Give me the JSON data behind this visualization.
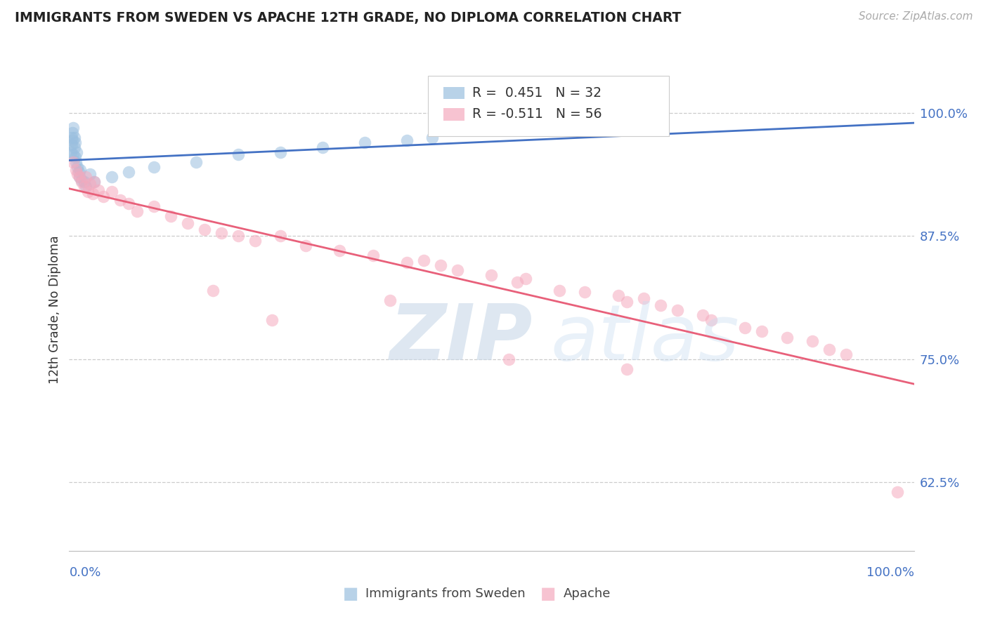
{
  "title": "IMMIGRANTS FROM SWEDEN VS APACHE 12TH GRADE, NO DIPLOMA CORRELATION CHART",
  "source": "Source: ZipAtlas.com",
  "ylabel": "12th Grade, No Diploma",
  "legend_blue_r": "R =  0.451",
  "legend_blue_n": "N = 32",
  "legend_pink_r": "R = -0.511",
  "legend_pink_n": "N = 56",
  "blue_color": "#9ABFDF",
  "pink_color": "#F5AABE",
  "blue_line_color": "#4472C4",
  "pink_line_color": "#E8607A",
  "background_color": "#FFFFFF",
  "xmin": 0.0,
  "xmax": 1.0,
  "ymin": 0.555,
  "ymax": 1.045,
  "yticks": [
    0.625,
    0.75,
    0.875,
    1.0
  ],
  "ytick_labels": [
    "62.5%",
    "75.0%",
    "87.5%",
    "100.0%"
  ],
  "blue_x": [
    0.002,
    0.003,
    0.003,
    0.004,
    0.004,
    0.005,
    0.005,
    0.006,
    0.006,
    0.007,
    0.007,
    0.008,
    0.009,
    0.01,
    0.011,
    0.012,
    0.013,
    0.015,
    0.018,
    0.02,
    0.025,
    0.03,
    0.05,
    0.07,
    0.1,
    0.15,
    0.2,
    0.25,
    0.3,
    0.35,
    0.4,
    0.43
  ],
  "blue_y": [
    0.96,
    0.968,
    0.975,
    0.972,
    0.98,
    0.985,
    0.958,
    0.965,
    0.975,
    0.955,
    0.97,
    0.95,
    0.96,
    0.945,
    0.94,
    0.935,
    0.942,
    0.932,
    0.93,
    0.925,
    0.938,
    0.93,
    0.935,
    0.94,
    0.945,
    0.95,
    0.958,
    0.96,
    0.965,
    0.97,
    0.972,
    0.975
  ],
  "pink_x": [
    0.005,
    0.008,
    0.01,
    0.012,
    0.015,
    0.018,
    0.02,
    0.022,
    0.025,
    0.028,
    0.03,
    0.035,
    0.04,
    0.05,
    0.06,
    0.07,
    0.08,
    0.1,
    0.12,
    0.14,
    0.16,
    0.18,
    0.2,
    0.22,
    0.25,
    0.28,
    0.32,
    0.36,
    0.4,
    0.42,
    0.44,
    0.46,
    0.5,
    0.53,
    0.54,
    0.58,
    0.61,
    0.65,
    0.66,
    0.68,
    0.7,
    0.72,
    0.75,
    0.76,
    0.8,
    0.82,
    0.85,
    0.88,
    0.9,
    0.92,
    0.17,
    0.24,
    0.38,
    0.52,
    0.66,
    0.98
  ],
  "pink_y": [
    0.95,
    0.942,
    0.938,
    0.935,
    0.93,
    0.925,
    0.935,
    0.92,
    0.928,
    0.918,
    0.93,
    0.922,
    0.915,
    0.92,
    0.912,
    0.908,
    0.9,
    0.905,
    0.895,
    0.888,
    0.882,
    0.878,
    0.875,
    0.87,
    0.875,
    0.865,
    0.86,
    0.855,
    0.848,
    0.85,
    0.845,
    0.84,
    0.835,
    0.828,
    0.832,
    0.82,
    0.818,
    0.815,
    0.808,
    0.812,
    0.805,
    0.8,
    0.795,
    0.79,
    0.782,
    0.778,
    0.772,
    0.768,
    0.76,
    0.755,
    0.82,
    0.79,
    0.81,
    0.75,
    0.74,
    0.615
  ]
}
